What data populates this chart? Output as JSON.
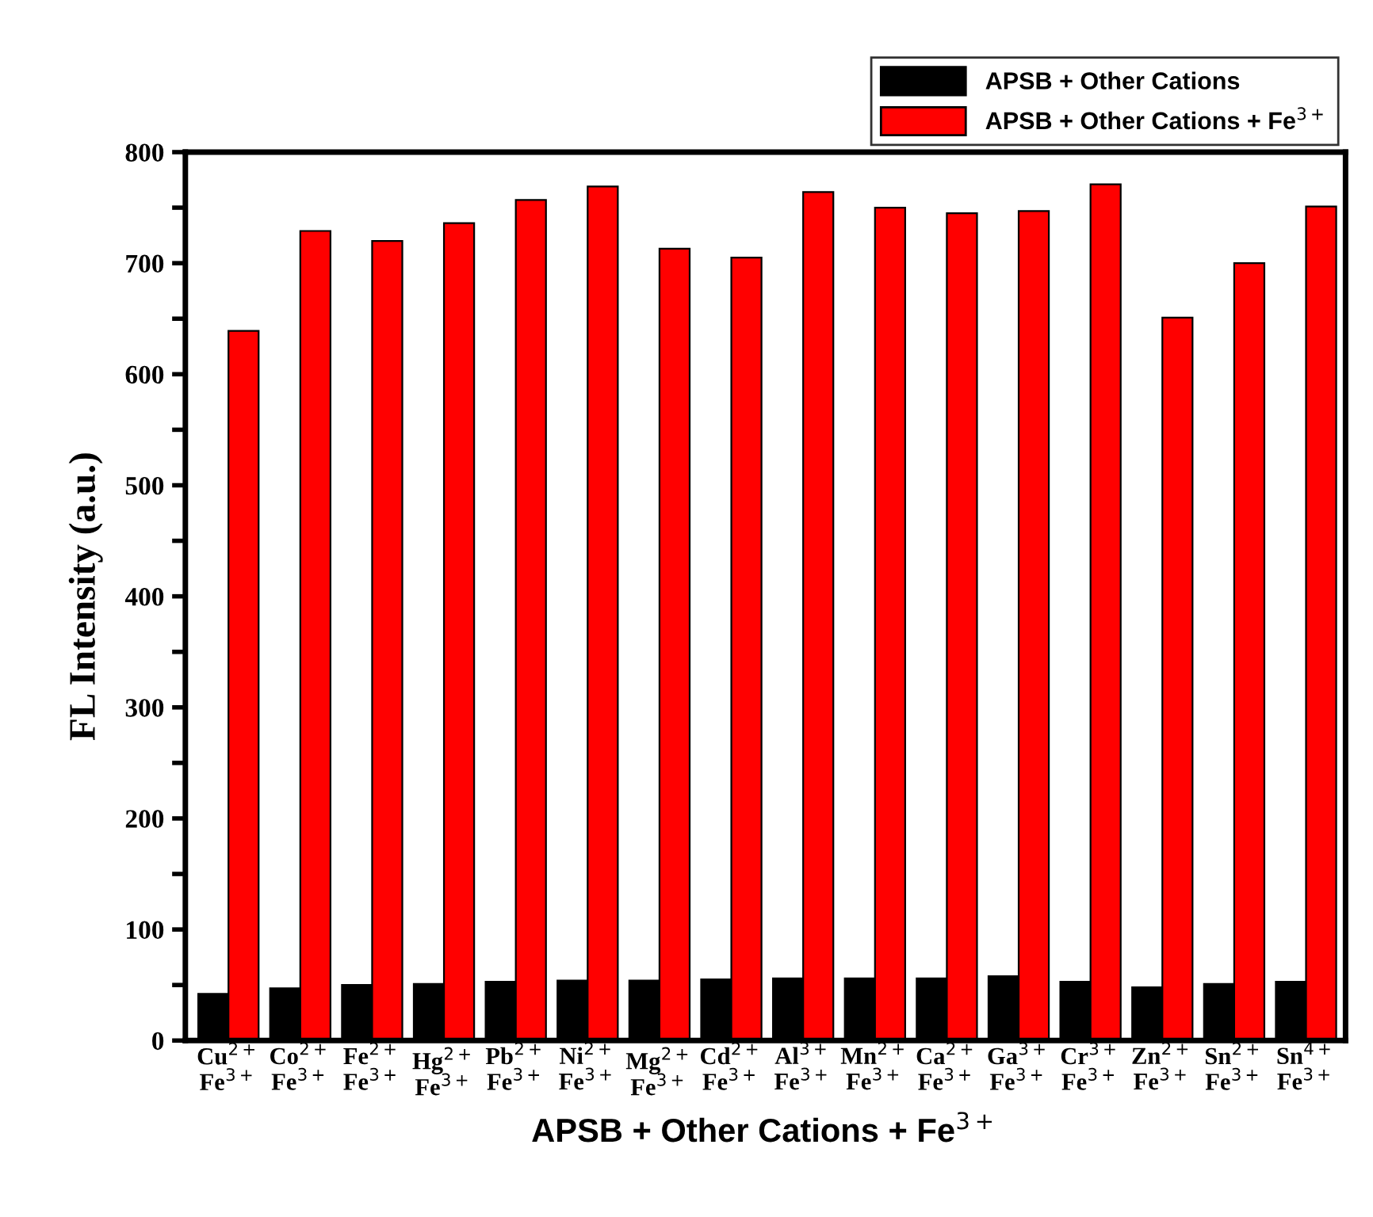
{
  "chart_data": {
    "type": "bar",
    "xlabel": "APSB + Other Cations + Fe$^{3+}$",
    "ylabel": "FL Intensity (a.u.)",
    "categories": [
      "Cu$^{2+}$\nFe$^{3+}$",
      "Co$^{2+}$\nFe$^{3+}$",
      "Fe$^{2+}$\nFe$^{3+}$",
      "Hg$^{2+}$\nFe$^{3+}$",
      "Pb$^{2+}$\nFe$^{3+}$",
      "Ni$^{2+}$\nFe$^{3+}$",
      "Mg$^{2+}$\nFe$^{3+}$",
      "Cd$^{2+}$\nFe$^{3+}$",
      "Al$^{3+}$\nFe$^{3+}$",
      "Mn$^{2+}$\nFe$^{3+}$",
      "Ca$^{2+}$\nFe$^{3+}$",
      "Ga$^{3+}$\nFe$^{3+}$",
      "Cr$^{3+}$\nFe$^{3+}$",
      "Zn$^{2+}$\nFe$^{3+}$",
      "Sn$^{2+}$\nFe$^{3+}$",
      "Sn$^{4+}$\nFe$^{3+}$"
    ],
    "series": [
      {
        "name": "APSB + Other Cations",
        "color": "#000000",
        "values": [
          42,
          47,
          50,
          51,
          53,
          54,
          54,
          55,
          56,
          56,
          56,
          58,
          53,
          48,
          51,
          53
        ]
      },
      {
        "name": "APSB + Other Cations + Fe$^{3+}$",
        "color": "#ff0000",
        "values": [
          639,
          729,
          720,
          736,
          757,
          769,
          713,
          705,
          764,
          750,
          745,
          747,
          771,
          651,
          700,
          751
        ]
      }
    ],
    "ylim": [
      0,
      800
    ],
    "yticks": [
      0,
      {
        "value": 50,
        "label": null
      },
      100,
      {
        "value": 150,
        "label": null
      },
      200,
      {
        "value": 250,
        "label": null
      },
      300,
      {
        "value": 350,
        "label": null
      },
      400,
      {
        "value": 450,
        "label": null
      },
      500,
      {
        "value": 550,
        "label": null
      },
      600,
      {
        "value": 650,
        "label": null
      },
      700,
      {
        "value": 750,
        "label": null
      },
      800
    ],
    "legend": "top right",
    "grid": false
  }
}
